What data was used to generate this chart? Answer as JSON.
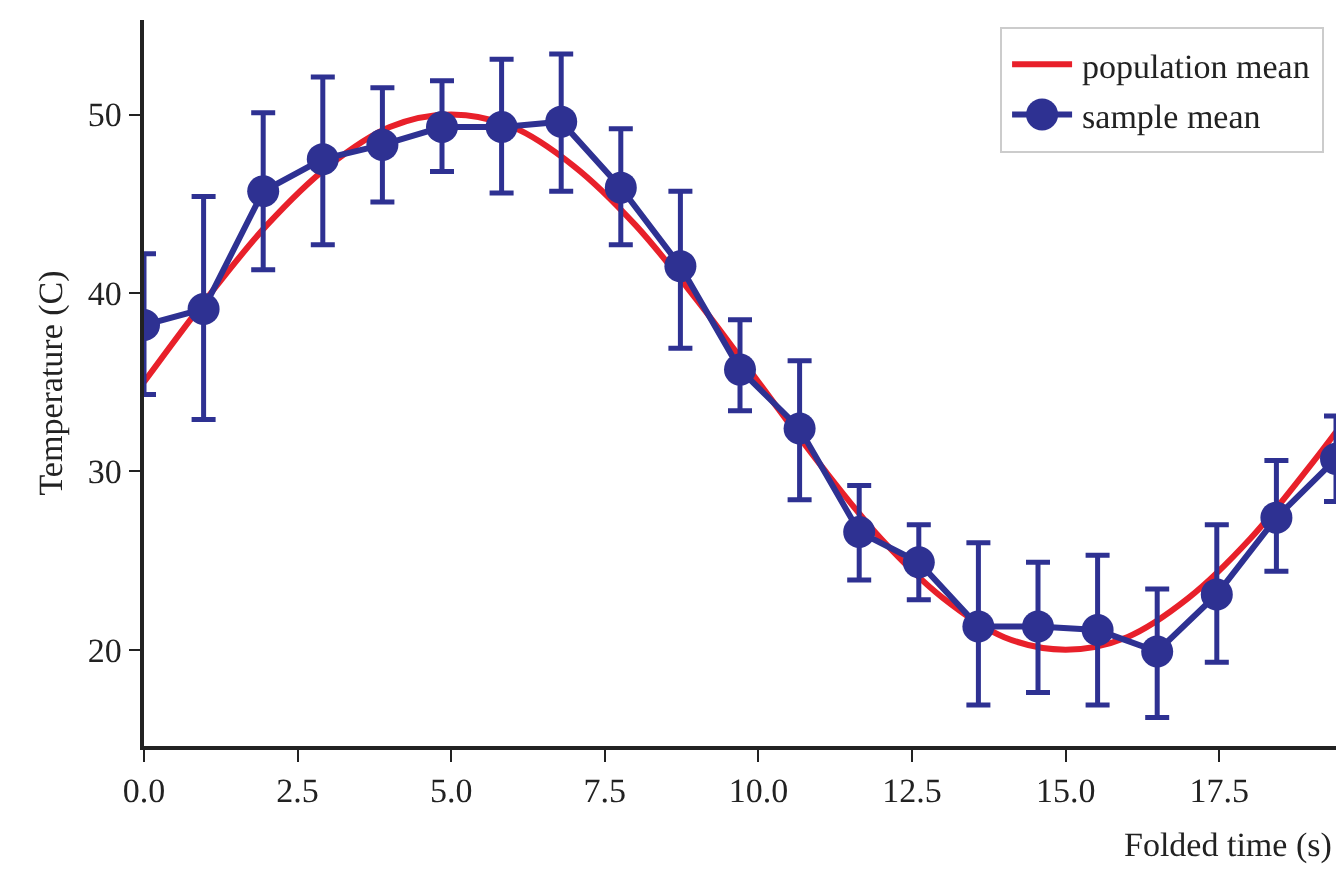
{
  "chart_data": {
    "type": "line",
    "xlabel": "Folded time (s)",
    "ylabel": "Temperature (C)",
    "xlim": [
      0,
      19.4
    ],
    "ylim": [
      14.6,
      55.3
    ],
    "xticks": [
      {
        "value": 0,
        "label": "0.0"
      },
      {
        "value": 2.5,
        "label": "2.5"
      },
      {
        "value": 5,
        "label": "5.0"
      },
      {
        "value": 7.5,
        "label": "7.5"
      },
      {
        "value": 10,
        "label": "10.0"
      },
      {
        "value": 12.5,
        "label": "12.5"
      },
      {
        "value": 15,
        "label": "15.0"
      },
      {
        "value": 17.5,
        "label": "17.5"
      }
    ],
    "yticks": [
      20,
      30,
      40,
      50
    ],
    "grid": false,
    "legend": "top right",
    "series": [
      {
        "name": "population mean",
        "color": "#e8202a",
        "marker": "none",
        "x": [
          0,
          1,
          2,
          3,
          4,
          5,
          6,
          7,
          8,
          9,
          10,
          11,
          12,
          13,
          14,
          15,
          16,
          17,
          18,
          19,
          19.4
        ],
        "values": [
          35,
          39.6,
          43.8,
          47.1,
          49.3,
          50,
          49.3,
          47.1,
          43.8,
          39.6,
          35,
          30.4,
          26.2,
          22.9,
          20.7,
          20,
          20.7,
          22.9,
          26.2,
          30.4,
          32.2
        ]
      },
      {
        "name": "sample mean",
        "color": "#2e3192",
        "marker": "circle",
        "x": [
          0,
          0.97,
          1.94,
          2.91,
          3.88,
          4.85,
          5.82,
          6.79,
          7.76,
          8.73,
          9.7,
          10.67,
          11.64,
          12.61,
          13.58,
          14.55,
          15.52,
          16.49,
          17.46,
          18.43,
          19.4
        ],
        "values": [
          38.2,
          39.1,
          45.7,
          47.5,
          48.3,
          49.3,
          49.3,
          49.6,
          45.9,
          41.5,
          35.7,
          32.4,
          26.6,
          24.9,
          21.3,
          21.3,
          21.1,
          19.9,
          23.1,
          27.4,
          30.7
        ],
        "errors": [
          [
            34.3,
            42.2
          ],
          [
            32.9,
            45.4
          ],
          [
            41.3,
            50.1
          ],
          [
            42.7,
            52.1
          ],
          [
            45.1,
            51.5
          ],
          [
            46.8,
            51.9
          ],
          [
            45.6,
            53.1
          ],
          [
            45.7,
            53.4
          ],
          [
            42.7,
            49.2
          ],
          [
            36.9,
            45.7
          ],
          [
            33.4,
            38.5
          ],
          [
            28.4,
            36.2
          ],
          [
            23.9,
            29.2
          ],
          [
            22.8,
            27.0
          ],
          [
            16.9,
            26.0
          ],
          [
            17.6,
            24.9
          ],
          [
            16.9,
            25.3
          ],
          [
            16.2,
            23.4
          ],
          [
            19.3,
            27.0
          ],
          [
            24.4,
            30.6
          ],
          [
            28.3,
            33.1
          ]
        ]
      }
    ]
  }
}
